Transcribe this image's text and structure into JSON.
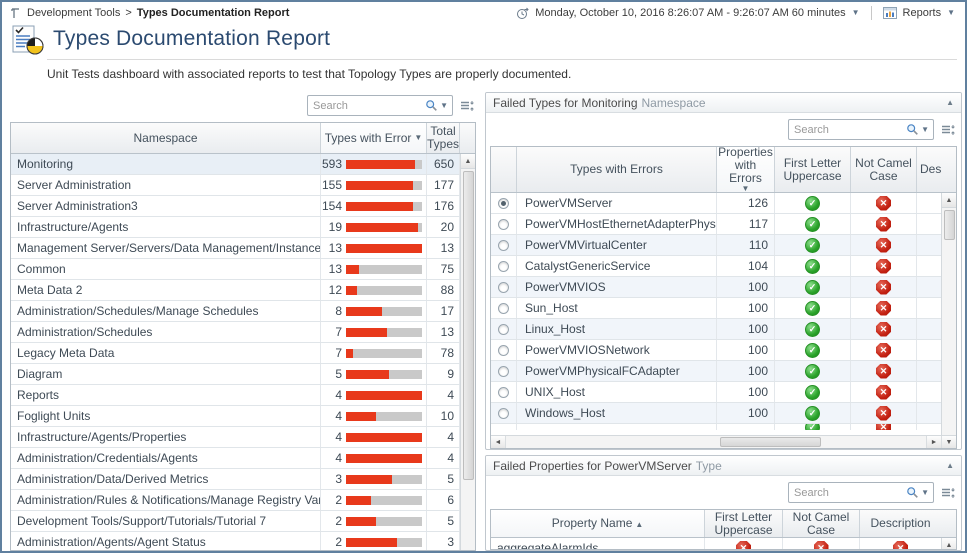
{
  "breadcrumb": {
    "items": [
      "Development Tools",
      "Types Documentation Report"
    ],
    "separator": ">"
  },
  "topbar": {
    "time_range": "Monday, October 10, 2016 8:26:07 AM - 9:26:07 AM 60 minutes",
    "reports_label": "Reports"
  },
  "header": {
    "title": "Types Documentation Report",
    "subtitle": "Unit Tests dashboard with associated reports to test that Topology Types are properly documented."
  },
  "colors": {
    "bar_red": "#e8391b",
    "pass_green": "#2aa32a",
    "fail_red": "#c32011",
    "title_blue": "#2b4a70"
  },
  "namespace_table": {
    "search_placeholder": "Search",
    "columns": {
      "namespace": "Namespace",
      "errors": "Types with Error",
      "total": "Total Types"
    },
    "sort": {
      "column": "Types with Error",
      "direction": "desc"
    },
    "rows": [
      {
        "namespace": "Monitoring",
        "errors": 593,
        "total": 650,
        "selected": true
      },
      {
        "namespace": "Server Administration",
        "errors": 155,
        "total": 177
      },
      {
        "namespace": "Server Administration3",
        "errors": 154,
        "total": 176
      },
      {
        "namespace": "Infrastructure/Agents",
        "errors": 19,
        "total": 20
      },
      {
        "namespace": "Management Server/Servers/Data Management/Instances",
        "errors": 13,
        "total": 13
      },
      {
        "namespace": "Common",
        "errors": 13,
        "total": 75
      },
      {
        "namespace": "Meta Data 2",
        "errors": 12,
        "total": 88
      },
      {
        "namespace": "Administration/Schedules/Manage Schedules",
        "errors": 8,
        "total": 17
      },
      {
        "namespace": "Administration/Schedules",
        "errors": 7,
        "total": 13
      },
      {
        "namespace": "Legacy Meta Data",
        "errors": 7,
        "total": 78
      },
      {
        "namespace": "Diagram",
        "errors": 5,
        "total": 9
      },
      {
        "namespace": "Reports",
        "errors": 4,
        "total": 4
      },
      {
        "namespace": "Foglight Units",
        "errors": 4,
        "total": 10
      },
      {
        "namespace": "Infrastructure/Agents/Properties",
        "errors": 4,
        "total": 4
      },
      {
        "namespace": "Administration/Credentials/Agents",
        "errors": 4,
        "total": 4
      },
      {
        "namespace": "Administration/Data/Derived Metrics",
        "errors": 3,
        "total": 5
      },
      {
        "namespace": "Administration/Rules & Notifications/Manage Registry Variables",
        "errors": 2,
        "total": 6
      },
      {
        "namespace": "Development Tools/Support/Tutorials/Tutorial 7",
        "errors": 2,
        "total": 5
      },
      {
        "namespace": "Administration/Agents/Agent Status",
        "errors": 2,
        "total": 3
      }
    ]
  },
  "failed_types_panel": {
    "title": "Failed Types for Monitoring",
    "title_suffix": "Namespace",
    "search_placeholder": "Search",
    "columns": {
      "name": "Types with Errors",
      "errors": "Properties with Errors",
      "first_letter": "First Letter Uppercase",
      "not_camel": "Not Camel Case",
      "description": "Des"
    },
    "sort": {
      "column": "Properties with Errors",
      "direction": "desc"
    },
    "rows": [
      {
        "name": "PowerVMServer",
        "errors": 126,
        "first_letter": "pass",
        "not_camel": "fail",
        "selected": true
      },
      {
        "name": "PowerVMHostEthernetAdapterPhysicalPort",
        "errors": 117,
        "first_letter": "pass",
        "not_camel": "fail"
      },
      {
        "name": "PowerVMVirtualCenter",
        "errors": 110,
        "first_letter": "pass",
        "not_camel": "fail"
      },
      {
        "name": "CatalystGenericService",
        "errors": 104,
        "first_letter": "pass",
        "not_camel": "fail"
      },
      {
        "name": "PowerVMVIOS",
        "errors": 100,
        "first_letter": "pass",
        "not_camel": "fail"
      },
      {
        "name": "Sun_Host",
        "errors": 100,
        "first_letter": "pass",
        "not_camel": "fail"
      },
      {
        "name": "Linux_Host",
        "errors": 100,
        "first_letter": "pass",
        "not_camel": "fail"
      },
      {
        "name": "PowerVMVIOSNetwork",
        "errors": 100,
        "first_letter": "pass",
        "not_camel": "fail"
      },
      {
        "name": "PowerVMPhysicalFCAdapter",
        "errors": 100,
        "first_letter": "pass",
        "not_camel": "fail"
      },
      {
        "name": "UNIX_Host",
        "errors": 100,
        "first_letter": "pass",
        "not_camel": "fail"
      },
      {
        "name": "Windows_Host",
        "errors": 100,
        "first_letter": "pass",
        "not_camel": "fail"
      }
    ],
    "partial_row": {
      "first_letter": "pass",
      "not_camel": "fail"
    }
  },
  "failed_properties_panel": {
    "title": "Failed Properties for PowerVMServer",
    "title_suffix": "Type",
    "search_placeholder": "Search",
    "columns": {
      "name": "Property Name",
      "first_letter": "First Letter Uppercase",
      "not_camel": "Not Camel Case",
      "description": "Description"
    },
    "sort": {
      "column": "Property Name",
      "direction": "asc"
    },
    "rows": [
      {
        "name": "aggregateAlarmIds",
        "first_letter": "fail",
        "not_camel": "fail",
        "description": "fail"
      }
    ]
  }
}
